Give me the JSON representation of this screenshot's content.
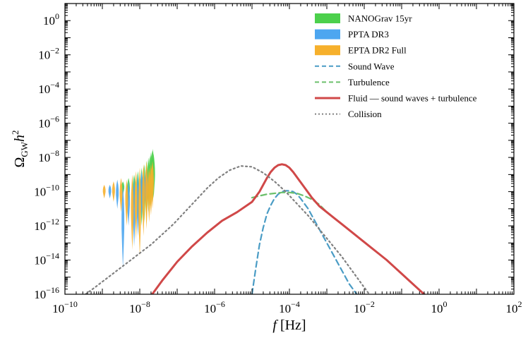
{
  "chart_data": {
    "type": "line",
    "title": "",
    "xlabel": "f [Hz]",
    "xlabel_italic_part": "f",
    "xlabel_rest": " [Hz]",
    "ylabel": "Ω_GW h^2",
    "ylabel_main": "Ω",
    "ylabel_sub": "GW",
    "ylabel_h": "h",
    "ylabel_sup": "2",
    "xscale": "log",
    "yscale": "log",
    "xlim_log10": [
      -10,
      2
    ],
    "ylim_log10": [
      -16,
      1
    ],
    "x_ticks": [
      {
        "base": "10",
        "exp": "−10",
        "log10": -10
      },
      {
        "base": "10",
        "exp": "−8",
        "log10": -8
      },
      {
        "base": "10",
        "exp": "−6",
        "log10": -6
      },
      {
        "base": "10",
        "exp": "−4",
        "log10": -4
      },
      {
        "base": "10",
        "exp": "−2",
        "log10": -2
      },
      {
        "base": "10",
        "exp": "0",
        "log10": 0
      },
      {
        "base": "10",
        "exp": "2",
        "log10": 2
      }
    ],
    "y_ticks": [
      {
        "base": "10",
        "exp": "0",
        "log10": 0
      },
      {
        "base": "10",
        "exp": "−2",
        "log10": -2
      },
      {
        "base": "10",
        "exp": "−4",
        "log10": -4
      },
      {
        "base": "10",
        "exp": "−6",
        "log10": -6
      },
      {
        "base": "10",
        "exp": "−8",
        "log10": -8
      },
      {
        "base": "10",
        "exp": "−10",
        "log10": -10
      },
      {
        "base": "10",
        "exp": "−12",
        "log10": -12
      },
      {
        "base": "10",
        "exp": "−14",
        "log10": -14
      },
      {
        "base": "10",
        "exp": "−16",
        "log10": -16
      }
    ],
    "legend_position": "top-right",
    "violins": [
      {
        "name": "NANOGrav 15yr",
        "color": "#4cd04c",
        "log10_f": [
          -8.45,
          -8.3,
          -8.15,
          -8.05,
          -7.95,
          -7.88,
          -7.82,
          -7.77,
          -7.73,
          -7.7,
          -7.67,
          -7.65,
          -7.63
        ],
        "log10_omega_range": [
          [
            -10.2,
            -9.4
          ],
          [
            -10.6,
            -9.2
          ],
          [
            -11.0,
            -9.0
          ],
          [
            -11.6,
            -8.8
          ],
          [
            -12.0,
            -8.6
          ],
          [
            -11.8,
            -8.4
          ],
          [
            -11.5,
            -8.2
          ],
          [
            -11.2,
            -8.0
          ],
          [
            -11.0,
            -7.9
          ],
          [
            -10.8,
            -7.7
          ],
          [
            -10.6,
            -7.6
          ],
          [
            -10.5,
            -7.5
          ],
          [
            -10.4,
            -7.8
          ]
        ]
      },
      {
        "name": "PPTA DR3",
        "color": "#4da6f0",
        "log10_f": [
          -8.8,
          -8.6,
          -8.45,
          -8.3,
          -8.15,
          -8.05,
          -7.95,
          -7.88,
          -7.82
        ],
        "log10_omega_range": [
          [
            -10.4,
            -9.6
          ],
          [
            -11.0,
            -9.3
          ],
          [
            -14.5,
            -9.6
          ],
          [
            -12.0,
            -9.4
          ],
          [
            -13.2,
            -9.2
          ],
          [
            -12.6,
            -9.0
          ],
          [
            -11.5,
            -8.8
          ],
          [
            -11.0,
            -8.9
          ],
          [
            -10.8,
            -8.6
          ]
        ]
      },
      {
        "name": "EPTA DR2 Full",
        "color": "#f6b02c",
        "log10_f": [
          -8.95,
          -8.7,
          -8.5,
          -8.35,
          -8.2,
          -8.1,
          -8.0,
          -7.9,
          -7.82,
          -7.75,
          -7.7,
          -7.66
        ],
        "log10_omega_range": [
          [
            -10.4,
            -9.6
          ],
          [
            -10.6,
            -9.4
          ],
          [
            -11.2,
            -9.2
          ],
          [
            -12.0,
            -9.3
          ],
          [
            -13.4,
            -9.0
          ],
          [
            -12.8,
            -8.8
          ],
          [
            -13.8,
            -8.6
          ],
          [
            -12.6,
            -8.4
          ],
          [
            -12.2,
            -8.2
          ],
          [
            -11.8,
            -8.6
          ],
          [
            -11.4,
            -8.4
          ],
          [
            -11.0,
            -8.2
          ]
        ]
      }
    ],
    "series": [
      {
        "name": "Sound Wave",
        "color": "#4a9cc5",
        "style": "dashed",
        "log10_f": [
          -5.0,
          -4.9,
          -4.8,
          -4.7,
          -4.6,
          -4.5,
          -4.4,
          -4.3,
          -4.2,
          -4.1,
          -4.0,
          -3.9,
          -3.8,
          -3.7,
          -3.6,
          -3.5,
          -3.4,
          -3.3,
          -3.2,
          -3.1,
          -3.0,
          -2.8,
          -2.6,
          -2.4,
          -2.2,
          -2.0
        ],
        "log10_omega": [
          -16.0,
          -14.5,
          -13.1,
          -12.1,
          -11.3,
          -10.8,
          -10.4,
          -10.15,
          -10.0,
          -9.95,
          -9.95,
          -10.0,
          -10.15,
          -10.4,
          -10.7,
          -11.0,
          -11.4,
          -11.8,
          -12.2,
          -12.6,
          -13.0,
          -13.8,
          -14.6,
          -15.4,
          -16.0,
          -16.3
        ]
      },
      {
        "name": "Turbulence",
        "color": "#6cc06c",
        "style": "dashed",
        "log10_f": [
          -5.0,
          -4.8,
          -4.6,
          -4.4,
          -4.2,
          -4.0,
          -3.8,
          -3.6,
          -3.4,
          -3.2,
          -3.0
        ],
        "log10_omega": [
          -10.35,
          -10.25,
          -10.15,
          -10.1,
          -10.05,
          -10.05,
          -10.1,
          -10.25,
          -10.45,
          -10.75,
          -11.2
        ]
      },
      {
        "name": "Fluid — sound waves + turbulence",
        "color": "#d04848",
        "style": "solid",
        "log10_f": [
          -7.7,
          -7.4,
          -7.0,
          -6.6,
          -6.2,
          -5.8,
          -5.4,
          -5.0,
          -4.9,
          -4.8,
          -4.7,
          -4.6,
          -4.5,
          -4.4,
          -4.3,
          -4.2,
          -4.1,
          -4.0,
          -3.9,
          -3.8,
          -3.7,
          -3.6,
          -3.5,
          -3.4,
          -3.3,
          -3.2,
          -3.0,
          -2.8,
          -2.6,
          -2.4,
          -2.2,
          -2.0,
          -1.8,
          -1.6,
          -1.4,
          -1.2,
          -1.0,
          -0.8,
          -0.6,
          -0.4,
          -0.2
        ],
        "log10_omega": [
          -16.1,
          -15.2,
          -14.1,
          -13.2,
          -12.4,
          -11.7,
          -11.2,
          -10.6,
          -10.3,
          -10.0,
          -9.6,
          -9.2,
          -8.85,
          -8.6,
          -8.45,
          -8.4,
          -8.45,
          -8.6,
          -8.85,
          -9.15,
          -9.45,
          -9.75,
          -10.05,
          -10.35,
          -10.6,
          -10.85,
          -11.2,
          -11.55,
          -11.9,
          -12.25,
          -12.6,
          -12.95,
          -13.3,
          -13.65,
          -14.0,
          -14.4,
          -14.8,
          -15.2,
          -15.6,
          -16.0,
          -16.3
        ]
      },
      {
        "name": "Collision",
        "color": "#808080",
        "style": "dotted",
        "log10_f": [
          -9.45,
          -9.2,
          -8.9,
          -8.6,
          -8.3,
          -8.0,
          -7.7,
          -7.4,
          -7.1,
          -6.8,
          -6.5,
          -6.2,
          -5.9,
          -5.6,
          -5.3,
          -5.0,
          -4.7,
          -4.4,
          -4.1,
          -3.8,
          -3.5,
          -3.2,
          -2.9,
          -2.6,
          -2.3,
          -2.0,
          -1.8
        ],
        "log10_omega": [
          -16.0,
          -15.6,
          -15.1,
          -14.6,
          -14.1,
          -13.6,
          -13.1,
          -12.5,
          -11.9,
          -11.2,
          -10.5,
          -9.8,
          -9.2,
          -8.75,
          -8.5,
          -8.55,
          -8.9,
          -9.4,
          -10.0,
          -10.7,
          -11.4,
          -12.2,
          -13.0,
          -13.8,
          -14.7,
          -15.6,
          -16.2
        ]
      }
    ]
  },
  "legend": {
    "items": [
      {
        "label": "NANOGrav 15yr",
        "kind": "patch",
        "color": "#4cd04c"
      },
      {
        "label": "PPTA DR3",
        "kind": "patch",
        "color": "#4da6f0"
      },
      {
        "label": "EPTA DR2 Full",
        "kind": "patch",
        "color": "#f6b02c"
      },
      {
        "label": "Sound Wave",
        "kind": "line",
        "color": "#4a9cc5",
        "style": "dashed"
      },
      {
        "label": "Turbulence",
        "kind": "line",
        "color": "#6cc06c",
        "style": "dashed"
      },
      {
        "label": "Fluid — sound waves + turbulence",
        "kind": "line",
        "color": "#d04848",
        "style": "solid"
      },
      {
        "label": "Collision",
        "kind": "line",
        "color": "#808080",
        "style": "dotted"
      }
    ]
  }
}
